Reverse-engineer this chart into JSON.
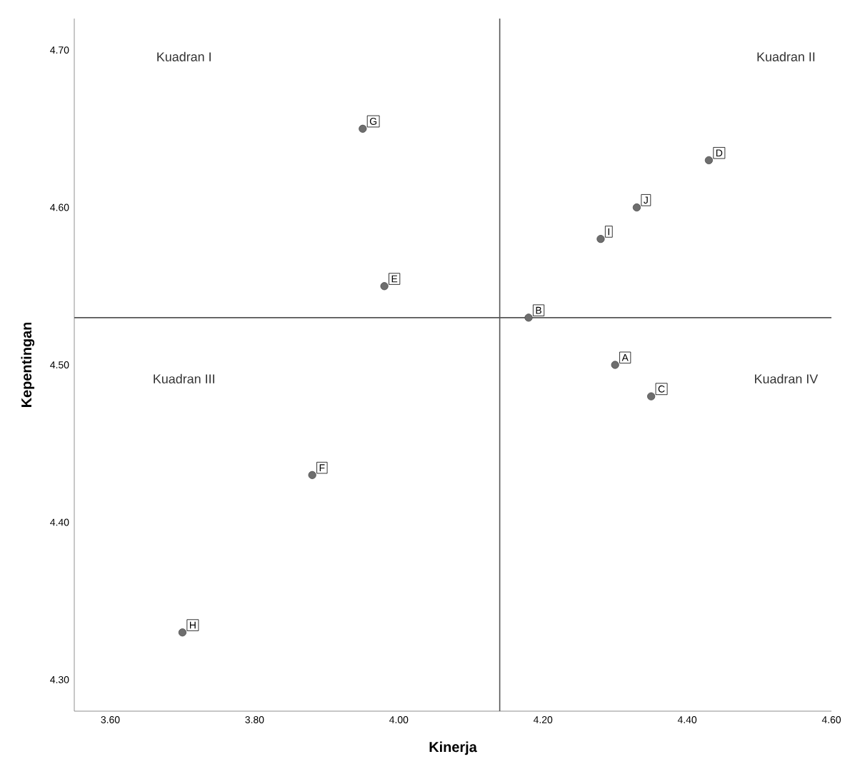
{
  "chart_data": {
    "type": "scatter",
    "xlabel": "Kinerja",
    "ylabel": "Kepentingan",
    "x": [
      4.3,
      4.18,
      4.35,
      4.43,
      3.98,
      3.88,
      3.95,
      3.7,
      4.28,
      4.33
    ],
    "series": [
      {
        "color": "#6e6e6e",
        "values": [
          4.5,
          4.53,
          4.48,
          4.63,
          4.55,
          4.43,
          4.65,
          4.33,
          4.58,
          4.6
        ]
      }
    ],
    "xlim": [
      3.55,
      4.6
    ],
    "xticks": [
      {
        "value": 3.6,
        "label": "3.60"
      },
      {
        "value": 3.8,
        "label": "3.80"
      },
      {
        "value": 4.0,
        "label": "4.00"
      },
      {
        "value": 4.2,
        "label": "4.20"
      },
      {
        "value": 4.4,
        "label": "4.40"
      },
      {
        "value": 4.6,
        "label": "4.60"
      }
    ],
    "ylim": [
      4.28,
      4.72
    ],
    "yticks": [
      {
        "value": 4.3,
        "label": "4.30"
      },
      {
        "value": 4.4,
        "label": "4.40"
      },
      {
        "value": 4.5,
        "label": "4.50"
      },
      {
        "value": 4.6,
        "label": "4.60"
      },
      {
        "value": 4.7,
        "label": "4.70"
      }
    ],
    "ref_lines": [
      {
        "axis": "x",
        "value": 4.14,
        "color": "#555555"
      },
      {
        "axis": "y",
        "value": 4.53,
        "color": "#555555"
      }
    ],
    "annotations": [
      "Kuadran I",
      "Kuadran II",
      "Kuadran III",
      "Kuadran IV",
      {
        "text": "A",
        "x": 4.3,
        "y": 4.5
      },
      {
        "text": "B",
        "x": 4.18,
        "y": 4.53
      },
      {
        "text": "C",
        "x": 4.35,
        "y": 4.48
      },
      {
        "text": "D",
        "x": 4.43,
        "y": 4.63
      },
      {
        "text": "E",
        "x": 3.98,
        "y": 4.55
      },
      {
        "text": "F",
        "x": 3.88,
        "y": 4.43
      },
      {
        "text": "G",
        "x": 3.95,
        "y": 4.65
      },
      {
        "text": "H",
        "x": 3.7,
        "y": 4.33
      },
      {
        "text": "I",
        "x": 4.28,
        "y": 4.58
      },
      {
        "text": "J",
        "x": 4.33,
        "y": 4.6
      }
    ]
  }
}
